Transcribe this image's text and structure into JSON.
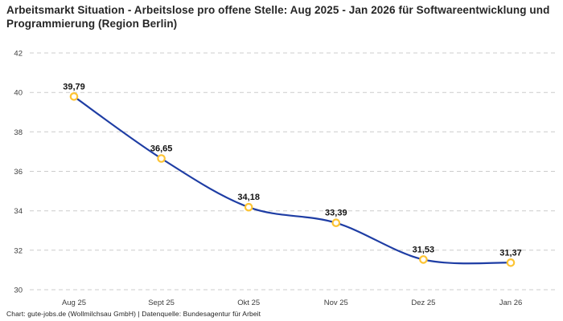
{
  "title": "Arbeitsmarkt Situation - Arbeitslose pro offene Stelle: Aug 2025 - Jan 2026 für Softwareentwicklung und Programmierung (Region Berlin)",
  "footer": "Chart: gute-jobs.de (Wollmilchsau GmbH) | Datenquelle: Bundesagentur für Arbeit",
  "chart_data": {
    "type": "line",
    "title": "Arbeitsmarkt Situation - Arbeitslose pro offene Stelle: Aug 2025 - Jan 2026 für Softwareentwicklung und Programmierung (Region Berlin)",
    "categories": [
      "Aug 25",
      "Sept 25",
      "Okt 25",
      "Nov 25",
      "Dez 25",
      "Jan 26"
    ],
    "values": [
      39.79,
      36.65,
      34.18,
      33.39,
      31.53,
      31.37
    ],
    "value_labels": [
      "39,79",
      "36,65",
      "34,18",
      "33,39",
      "31,53",
      "31,37"
    ],
    "xlabel": "",
    "ylabel": "",
    "ylim": [
      30,
      42
    ],
    "yticks": [
      30,
      32,
      34,
      36,
      38,
      40,
      42
    ],
    "grid": "horizontal-dashed",
    "legend": "none",
    "smooth": true,
    "colors": {
      "line": "#1e3da4",
      "marker_ring": "#fdc433",
      "marker_fill": "#ffffff",
      "gridline": "#cccccc",
      "tick_text": "#3d3d3d",
      "label_text": "#121212",
      "title_text": "#262626"
    }
  }
}
